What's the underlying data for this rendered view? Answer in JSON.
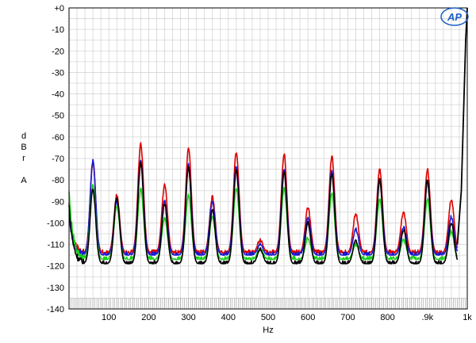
{
  "chart_data": {
    "type": "line",
    "xlabel": "Hz",
    "ylabel_lines": [
      "d",
      "B",
      "r",
      "",
      "A"
    ],
    "xlim": [
      0,
      1000
    ],
    "ylim": [
      -140,
      0
    ],
    "x_ticks": [
      {
        "value": 100,
        "label": "100"
      },
      {
        "value": 200,
        "label": "200"
      },
      {
        "value": 300,
        "label": "300"
      },
      {
        "value": 400,
        "label": "400"
      },
      {
        "value": 500,
        "label": "500"
      },
      {
        "value": 600,
        "label": "600"
      },
      {
        "value": 700,
        "label": "700"
      },
      {
        "value": 800,
        "label": "800"
      },
      {
        "value": 900,
        "label": ".9k"
      },
      {
        "value": 1000,
        "label": "1k"
      }
    ],
    "y_ticks": [
      {
        "value": 0,
        "label": "+0"
      },
      {
        "value": -10,
        "label": "-10"
      },
      {
        "value": -20,
        "label": "-20"
      },
      {
        "value": -30,
        "label": "-30"
      },
      {
        "value": -40,
        "label": "-40"
      },
      {
        "value": -50,
        "label": "-50"
      },
      {
        "value": -60,
        "label": "-60"
      },
      {
        "value": -70,
        "label": "-70"
      },
      {
        "value": -80,
        "label": "-80"
      },
      {
        "value": -90,
        "label": "-90"
      },
      {
        "value": -100,
        "label": "-100"
      },
      {
        "value": -110,
        "label": "-110"
      },
      {
        "value": -120,
        "label": "-120"
      },
      {
        "value": -130,
        "label": "-130"
      },
      {
        "value": -140,
        "label": "-140"
      }
    ],
    "grid": true,
    "logo_text": "AP",
    "series": [
      {
        "color": "#e00000",
        "floor": -114,
        "start": -92,
        "peaks": [
          [
            60,
            -72
          ],
          [
            120,
            -87
          ],
          [
            180,
            -63
          ],
          [
            240,
            -82
          ],
          [
            300,
            -65
          ],
          [
            360,
            -88
          ],
          [
            420,
            -67
          ],
          [
            480,
            -108
          ],
          [
            540,
            -68
          ],
          [
            600,
            -93
          ],
          [
            660,
            -69
          ],
          [
            720,
            -96
          ],
          [
            780,
            -75
          ],
          [
            840,
            -95
          ],
          [
            900,
            -75
          ],
          [
            960,
            -89
          ]
        ]
      },
      {
        "color": "#1818d0",
        "floor": -115,
        "start": -95,
        "peaks": [
          [
            60,
            -71
          ],
          [
            120,
            -90
          ],
          [
            180,
            -71
          ],
          [
            240,
            -90
          ],
          [
            300,
            -73
          ],
          [
            360,
            -90
          ],
          [
            420,
            -74
          ],
          [
            480,
            -110
          ],
          [
            540,
            -75
          ],
          [
            600,
            -98
          ],
          [
            660,
            -76
          ],
          [
            720,
            -103
          ],
          [
            780,
            -80
          ],
          [
            840,
            -102
          ],
          [
            900,
            -81
          ],
          [
            960,
            -97
          ]
        ]
      },
      {
        "color": "#18d018",
        "floor": -117,
        "start": -85,
        "peaks": [
          [
            60,
            -82
          ],
          [
            120,
            -92
          ],
          [
            180,
            -84
          ],
          [
            240,
            -98
          ],
          [
            300,
            -87
          ],
          [
            360,
            -97
          ],
          [
            420,
            -84
          ],
          [
            480,
            -112
          ],
          [
            540,
            -84
          ],
          [
            600,
            -107
          ],
          [
            660,
            -86
          ],
          [
            720,
            -110
          ],
          [
            780,
            -89
          ],
          [
            840,
            -108
          ],
          [
            900,
            -89
          ],
          [
            960,
            -104
          ]
        ]
      },
      {
        "color": "#000000",
        "floor": -119,
        "start": -92,
        "peaks": [
          [
            60,
            -84
          ],
          [
            120,
            -88
          ],
          [
            180,
            -72
          ],
          [
            240,
            -91
          ],
          [
            300,
            -74
          ],
          [
            360,
            -94
          ],
          [
            420,
            -75
          ],
          [
            480,
            -112
          ],
          [
            540,
            -76
          ],
          [
            600,
            -100
          ],
          [
            660,
            -77
          ],
          [
            720,
            -108
          ],
          [
            780,
            -80
          ],
          [
            840,
            -103
          ],
          [
            900,
            -80
          ],
          [
            960,
            -100
          ]
        ]
      }
    ],
    "steep_rise": {
      "color": "#000000",
      "x": [
        975,
        985,
        992,
        996,
        1000
      ],
      "y": [
        -110,
        -85,
        -40,
        -15,
        0
      ]
    }
  }
}
